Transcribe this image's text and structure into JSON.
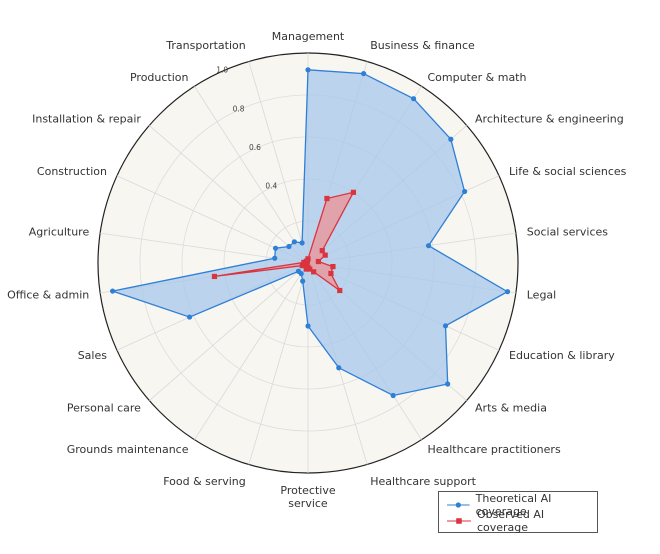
{
  "chart_data": {
    "type": "radar",
    "title": "",
    "categories": [
      "Management",
      "Business & finance",
      "Computer & math",
      "Architecture & engineering",
      "Life & social sciences",
      "Social services",
      "Legal",
      "Education & library",
      "Arts & media",
      "Healthcare practitioners",
      "Healthcare support",
      "Protective\nservice",
      "Food & serving",
      "Grounds maintenance",
      "Personal care",
      "Sales",
      "Office & admin",
      "Agriculture",
      "Construction",
      "Installation & repair",
      "Production",
      "Transportation"
    ],
    "rlim": [
      0,
      1.0
    ],
    "rticks": [
      0.4,
      0.6,
      0.8,
      1.0
    ],
    "grid": true,
    "legend_position": "bottom-right",
    "series": [
      {
        "name": "Theoretical AI coverage",
        "color": "#2e7fd6",
        "fill": "#a9c9ea",
        "values": [
          0.92,
          0.94,
          0.93,
          0.9,
          0.82,
          0.58,
          0.96,
          0.72,
          0.88,
          0.75,
          0.52,
          0.3,
          0.09,
          0.06,
          0.06,
          0.62,
          0.94,
          0.16,
          0.17,
          0.12,
          0.12,
          0.1
        ]
      },
      {
        "name": "Observed AI coverage",
        "color": "#d9343f",
        "fill": "#e89aa0",
        "values": [
          0.02,
          0.32,
          0.4,
          0.09,
          0.09,
          0.05,
          0.12,
          0.12,
          0.2,
          0.05,
          0.03,
          0.02,
          0.03,
          0.01,
          0.01,
          0.03,
          0.45,
          0.02,
          0.01,
          0.01,
          0.01,
          0.01
        ]
      }
    ]
  }
}
